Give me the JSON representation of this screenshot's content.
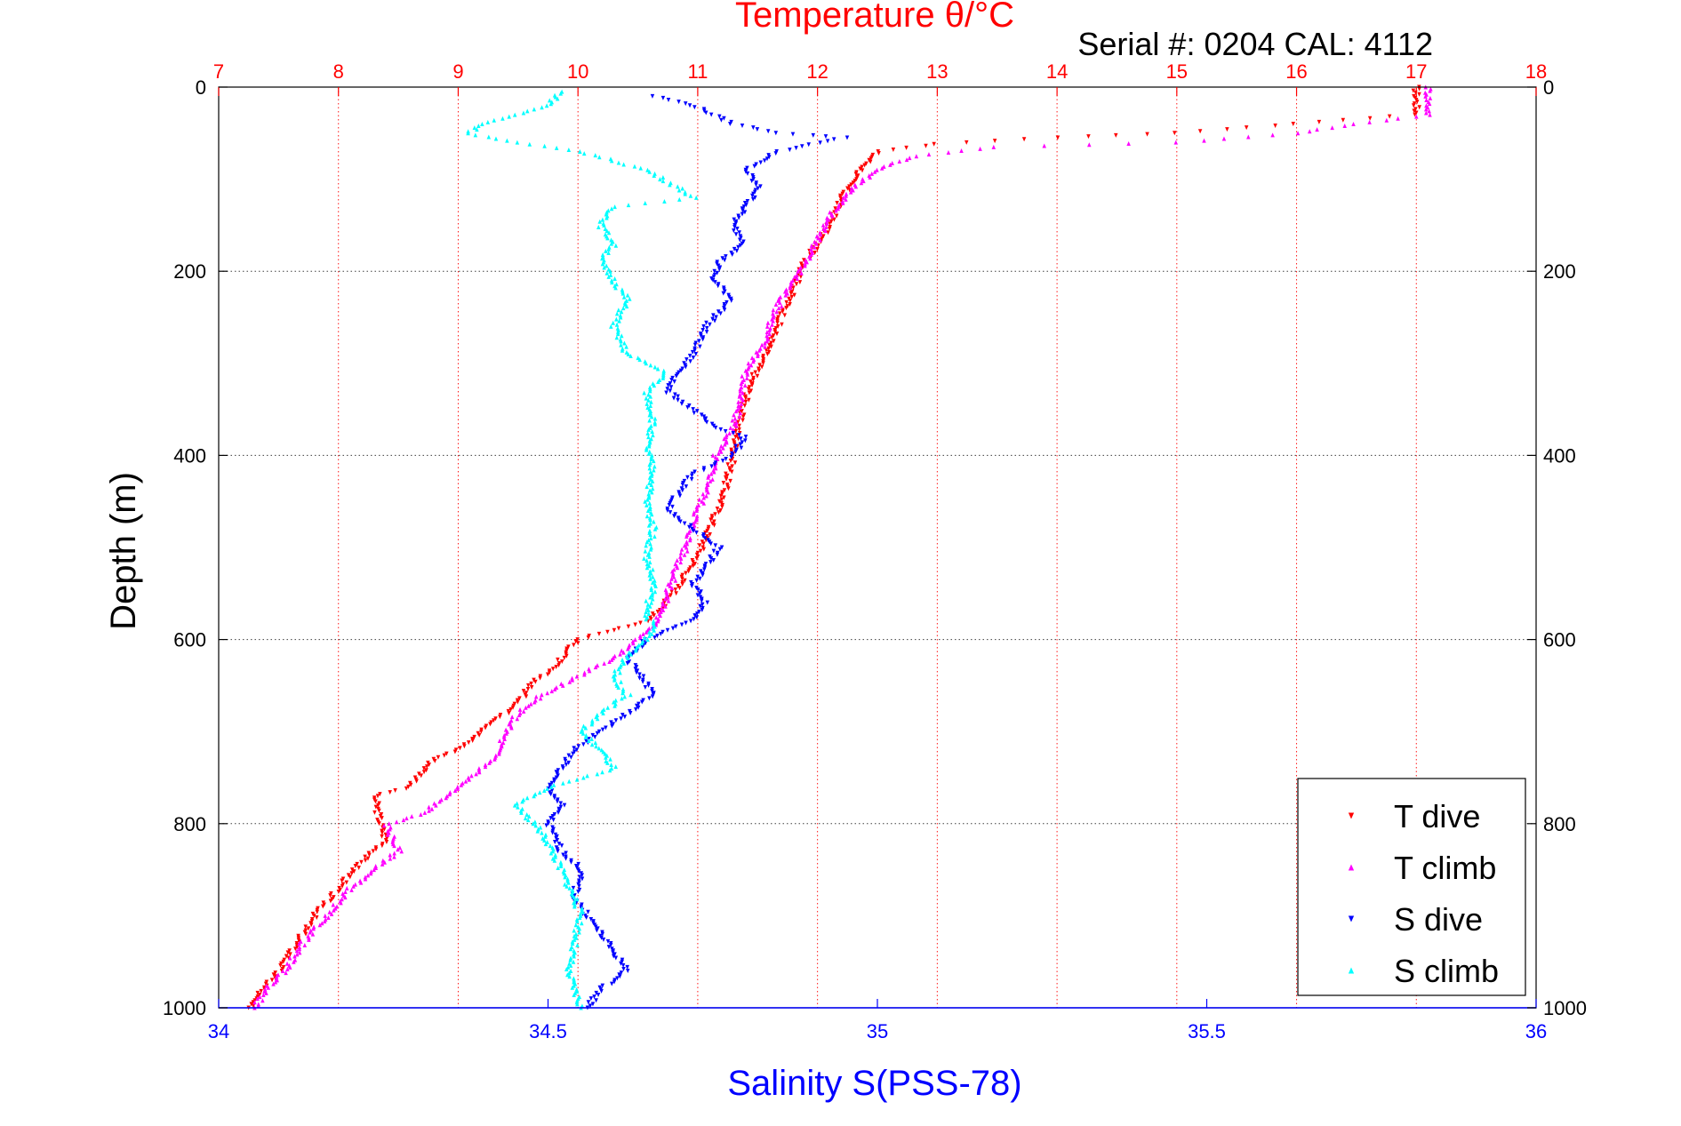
{
  "chart_data": {
    "type": "scatter",
    "title": "Temperature θ/°C",
    "subtitle": "Serial #: 0204  CAL: 4112",
    "ylabel": "Depth (m)",
    "xlabel": "Salinity S(PSS-78)",
    "y_axis": {
      "range": [
        0,
        1000
      ],
      "reversed": true,
      "ticks": [
        0,
        200,
        400,
        600,
        800,
        1000
      ]
    },
    "temperature_axis": {
      "position": "top",
      "range": [
        7,
        18
      ],
      "ticks": [
        7,
        8,
        9,
        10,
        11,
        12,
        13,
        14,
        15,
        16,
        17,
        18
      ],
      "color": "#ff0000"
    },
    "salinity_axis": {
      "position": "bottom",
      "range": [
        34,
        36
      ],
      "ticks": [
        34,
        34.5,
        35,
        35.5,
        36
      ],
      "color": "#0000ff"
    },
    "grid": true,
    "legend": {
      "placement": "bottom-right"
    },
    "series": [
      {
        "name": "T dive",
        "axis": "temperature",
        "color": "#ff0000",
        "points": [
          [
            17.0,
            0
          ],
          [
            17.0,
            30
          ],
          [
            16.0,
            40
          ],
          [
            15.0,
            50
          ],
          [
            14.0,
            55
          ],
          [
            13.0,
            62
          ],
          [
            12.5,
            70
          ],
          [
            12.4,
            85
          ],
          [
            12.3,
            100
          ],
          [
            12.2,
            120
          ],
          [
            12.1,
            150
          ],
          [
            12.0,
            170
          ],
          [
            11.9,
            190
          ],
          [
            11.8,
            220
          ],
          [
            11.7,
            250
          ],
          [
            11.6,
            280
          ],
          [
            11.45,
            320
          ],
          [
            11.35,
            360
          ],
          [
            11.3,
            400
          ],
          [
            11.2,
            450
          ],
          [
            11.1,
            480
          ],
          [
            11.0,
            510
          ],
          [
            10.8,
            550
          ],
          [
            10.6,
            580
          ],
          [
            10.0,
            600
          ],
          [
            9.8,
            630
          ],
          [
            9.6,
            650
          ],
          [
            9.5,
            670
          ],
          [
            9.2,
            700
          ],
          [
            9.0,
            720
          ],
          [
            8.8,
            730
          ],
          [
            8.6,
            760
          ],
          [
            8.3,
            770
          ],
          [
            8.35,
            800
          ],
          [
            8.4,
            820
          ],
          [
            8.2,
            840
          ],
          [
            8.0,
            870
          ],
          [
            7.8,
            900
          ],
          [
            7.6,
            940
          ],
          [
            7.5,
            960
          ],
          [
            7.3,
            990
          ],
          [
            7.25,
            1000
          ]
        ]
      },
      {
        "name": "T climb",
        "axis": "temperature",
        "color": "#ff00ff",
        "points": [
          [
            17.1,
            0
          ],
          [
            17.1,
            30
          ],
          [
            16.5,
            40
          ],
          [
            16.0,
            50
          ],
          [
            15.0,
            60
          ],
          [
            13.5,
            65
          ],
          [
            12.8,
            75
          ],
          [
            12.5,
            90
          ],
          [
            12.3,
            110
          ],
          [
            12.1,
            140
          ],
          [
            11.95,
            180
          ],
          [
            11.85,
            200
          ],
          [
            11.7,
            230
          ],
          [
            11.6,
            260
          ],
          [
            11.55,
            280
          ],
          [
            11.4,
            310
          ],
          [
            11.35,
            340
          ],
          [
            11.3,
            370
          ],
          [
            11.15,
            400
          ],
          [
            11.1,
            430
          ],
          [
            11.0,
            460
          ],
          [
            10.9,
            500
          ],
          [
            10.8,
            530
          ],
          [
            10.7,
            570
          ],
          [
            10.6,
            590
          ],
          [
            10.3,
            620
          ],
          [
            10.0,
            640
          ],
          [
            9.7,
            660
          ],
          [
            9.5,
            680
          ],
          [
            9.4,
            700
          ],
          [
            9.3,
            730
          ],
          [
            9.0,
            760
          ],
          [
            8.8,
            780
          ],
          [
            8.7,
            790
          ],
          [
            8.4,
            800
          ],
          [
            8.5,
            830
          ],
          [
            8.3,
            850
          ],
          [
            8.1,
            870
          ],
          [
            7.9,
            900
          ],
          [
            7.7,
            930
          ],
          [
            7.55,
            960
          ],
          [
            7.4,
            980
          ],
          [
            7.3,
            1000
          ]
        ]
      },
      {
        "name": "S dive",
        "axis": "salinity",
        "color": "#0000ff",
        "points": [
          [
            34.66,
            10
          ],
          [
            34.72,
            20
          ],
          [
            34.78,
            40
          ],
          [
            34.85,
            50
          ],
          [
            34.95,
            55
          ],
          [
            34.85,
            70
          ],
          [
            34.8,
            90
          ],
          [
            34.82,
            110
          ],
          [
            34.8,
            130
          ],
          [
            34.78,
            150
          ],
          [
            34.8,
            170
          ],
          [
            34.76,
            190
          ],
          [
            34.75,
            210
          ],
          [
            34.78,
            230
          ],
          [
            34.74,
            260
          ],
          [
            34.72,
            290
          ],
          [
            34.7,
            310
          ],
          [
            34.68,
            330
          ],
          [
            34.72,
            350
          ],
          [
            34.75,
            370
          ],
          [
            34.8,
            380
          ],
          [
            34.78,
            400
          ],
          [
            34.72,
            420
          ],
          [
            34.7,
            440
          ],
          [
            34.68,
            460
          ],
          [
            34.72,
            480
          ],
          [
            34.76,
            500
          ],
          [
            34.74,
            520
          ],
          [
            34.72,
            540
          ],
          [
            34.74,
            560
          ],
          [
            34.72,
            580
          ],
          [
            34.65,
            600
          ],
          [
            34.62,
            620
          ],
          [
            34.64,
            640
          ],
          [
            34.66,
            660
          ],
          [
            34.62,
            680
          ],
          [
            34.58,
            700
          ],
          [
            34.54,
            720
          ],
          [
            34.52,
            740
          ],
          [
            34.5,
            760
          ],
          [
            34.52,
            780
          ],
          [
            34.5,
            800
          ],
          [
            34.52,
            830
          ],
          [
            34.55,
            850
          ],
          [
            34.54,
            880
          ],
          [
            34.56,
            900
          ],
          [
            34.58,
            920
          ],
          [
            34.6,
            940
          ],
          [
            34.62,
            960
          ],
          [
            34.58,
            980
          ],
          [
            34.56,
            1000
          ]
        ]
      },
      {
        "name": "S climb",
        "axis": "salinity",
        "color": "#00ffff",
        "points": [
          [
            34.52,
            5
          ],
          [
            34.5,
            20
          ],
          [
            34.4,
            40
          ],
          [
            34.38,
            50
          ],
          [
            34.45,
            60
          ],
          [
            34.55,
            70
          ],
          [
            34.6,
            80
          ],
          [
            34.65,
            90
          ],
          [
            34.7,
            110
          ],
          [
            34.72,
            120
          ],
          [
            34.6,
            130
          ],
          [
            34.58,
            150
          ],
          [
            34.6,
            170
          ],
          [
            34.58,
            190
          ],
          [
            34.6,
            210
          ],
          [
            34.62,
            230
          ],
          [
            34.6,
            260
          ],
          [
            34.62,
            290
          ],
          [
            34.68,
            310
          ],
          [
            34.65,
            330
          ],
          [
            34.66,
            360
          ],
          [
            34.65,
            390
          ],
          [
            34.66,
            420
          ],
          [
            34.65,
            450
          ],
          [
            34.66,
            480
          ],
          [
            34.65,
            510
          ],
          [
            34.66,
            540
          ],
          [
            34.65,
            570
          ],
          [
            34.66,
            590
          ],
          [
            34.62,
            620
          ],
          [
            34.6,
            640
          ],
          [
            34.62,
            660
          ],
          [
            34.58,
            680
          ],
          [
            34.55,
            700
          ],
          [
            34.58,
            720
          ],
          [
            34.6,
            740
          ],
          [
            34.5,
            760
          ],
          [
            34.45,
            780
          ],
          [
            34.48,
            800
          ],
          [
            34.5,
            820
          ],
          [
            34.52,
            850
          ],
          [
            34.54,
            880
          ],
          [
            34.55,
            900
          ],
          [
            34.54,
            930
          ],
          [
            34.53,
            960
          ],
          [
            34.54,
            980
          ],
          [
            34.55,
            1000
          ]
        ]
      }
    ]
  }
}
